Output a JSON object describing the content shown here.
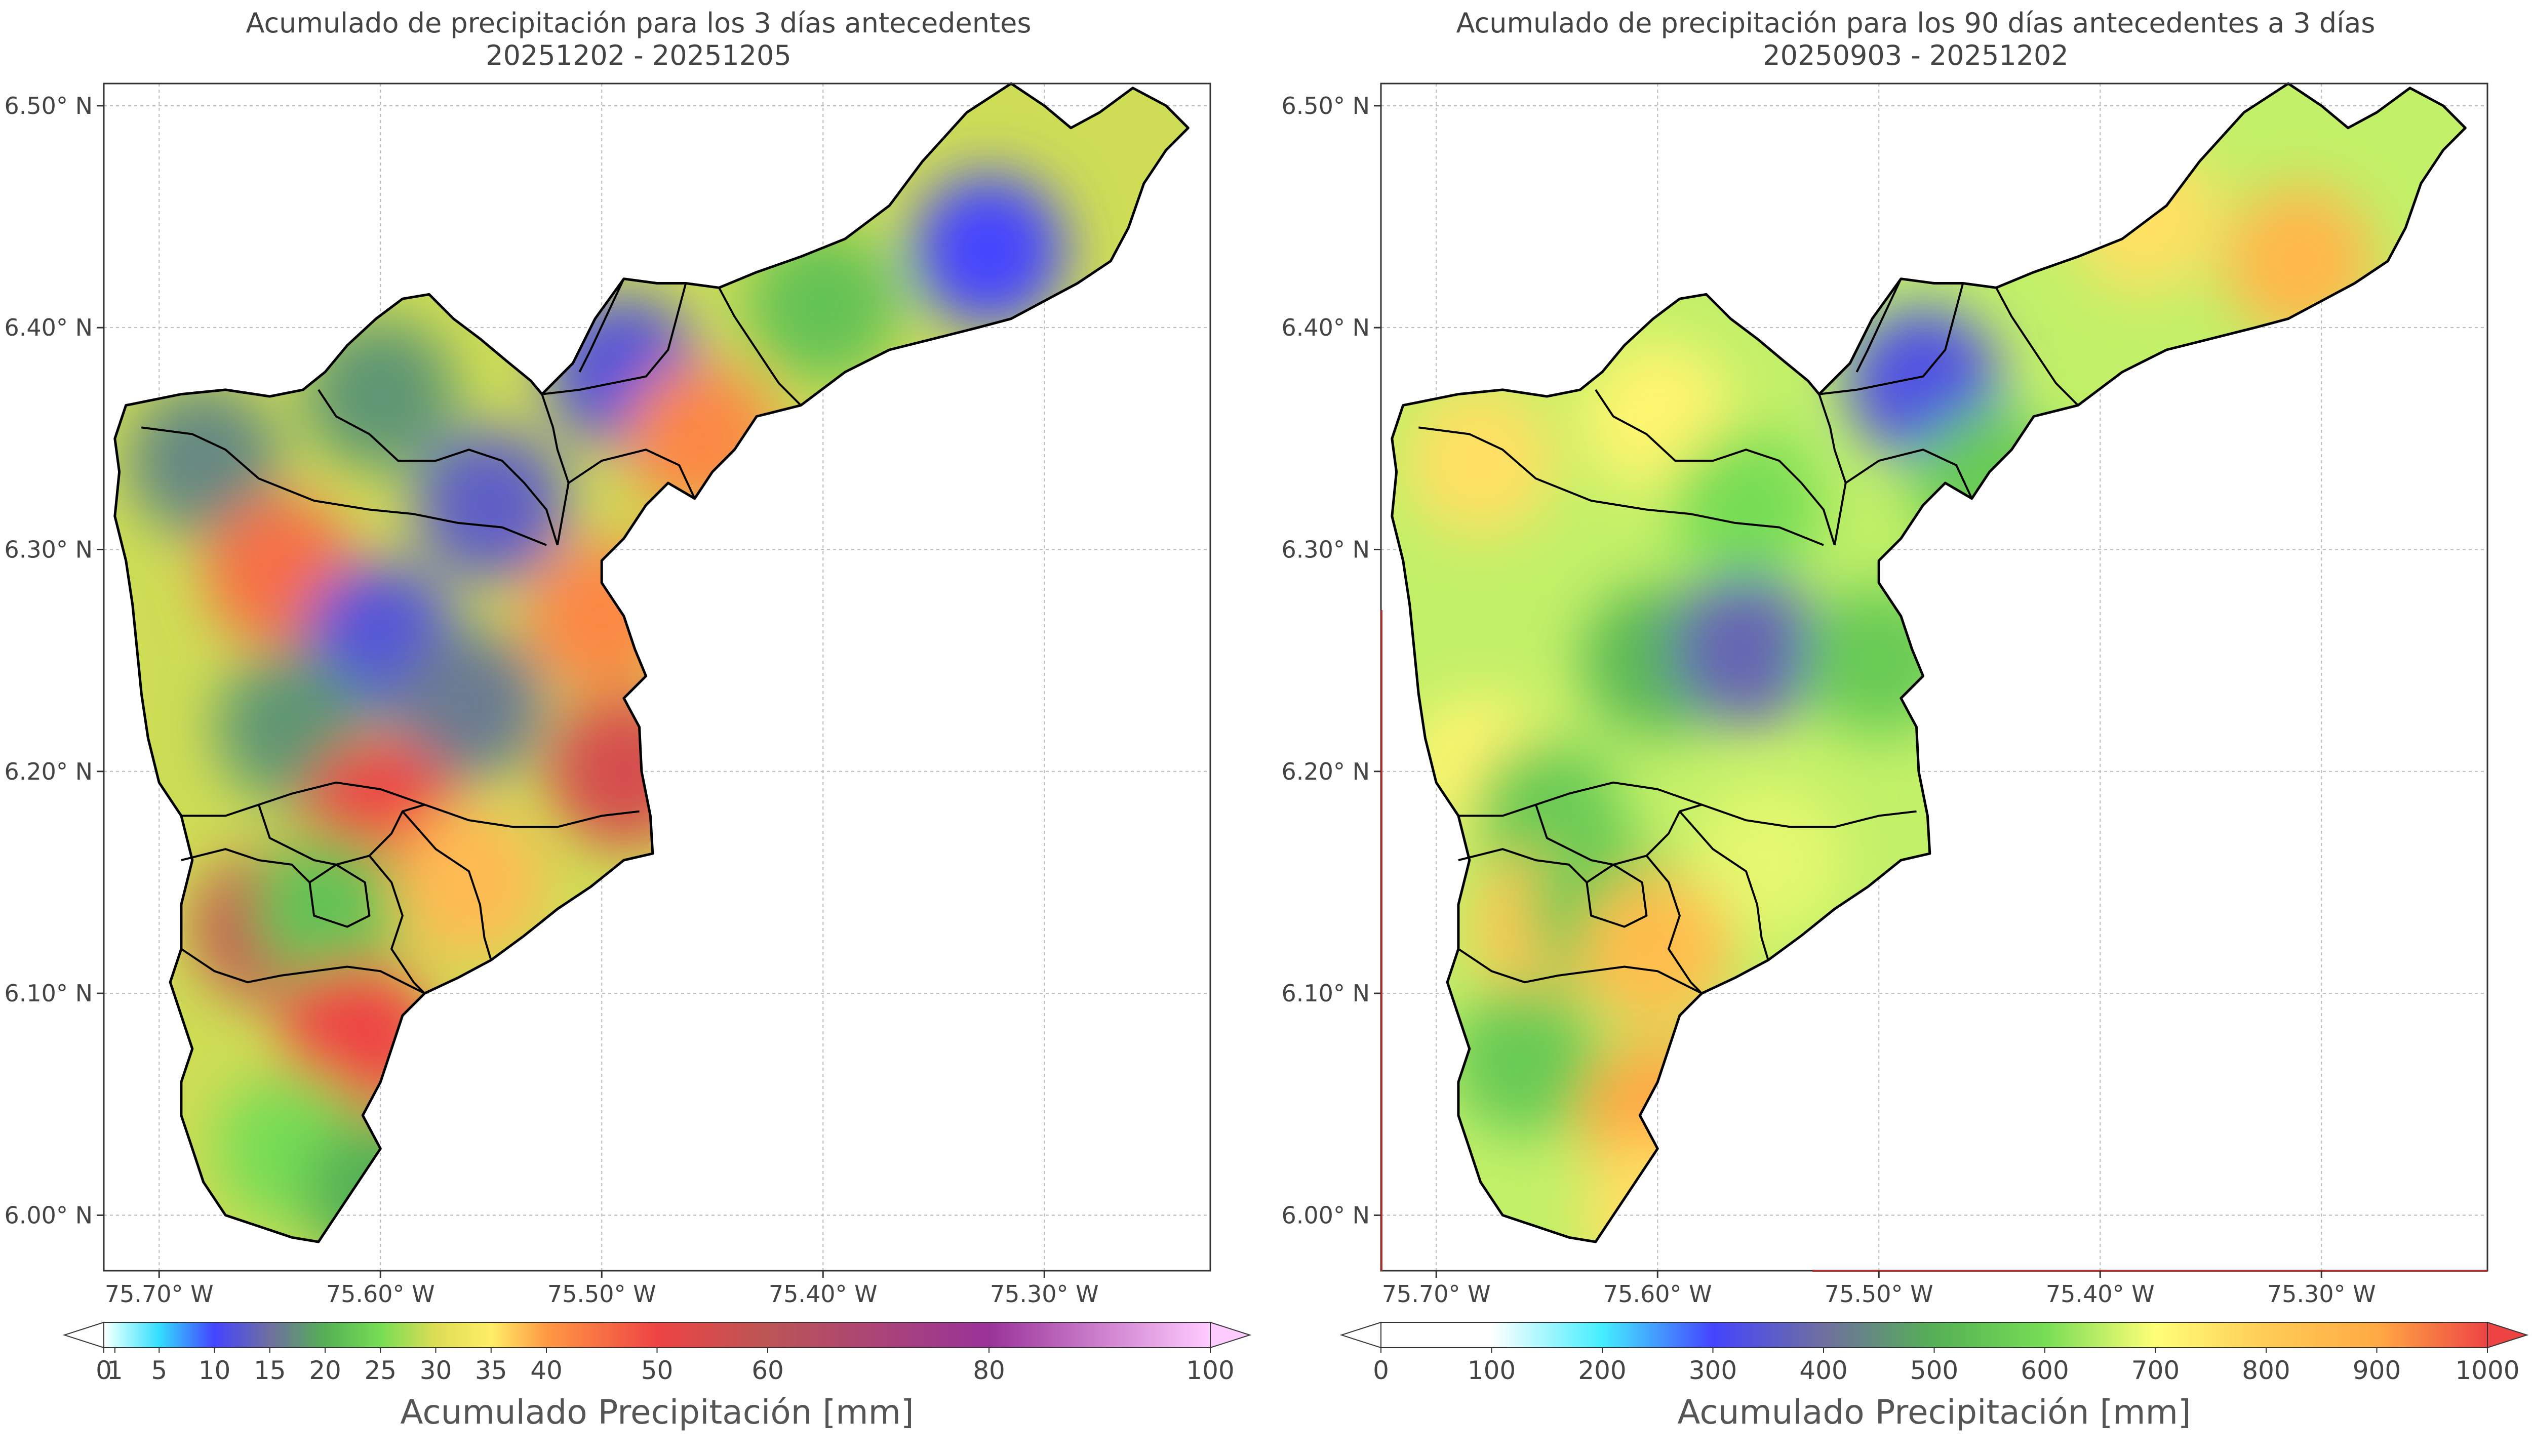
{
  "colors": {
    "frame": "#333333",
    "grid": "#bbbbbb",
    "boundary": "#000000",
    "edge_highlight": "#a33333"
  },
  "chart_data": [
    {
      "type": "heatmap",
      "title": "Acumulado de precipitación para los 3 días antecedentes",
      "subtitle": "20251202 - 20251205",
      "xlabel": "",
      "ylabel": "",
      "xlim": [
        -75.725,
        -75.225
      ],
      "ylim": [
        5.975,
        6.51
      ],
      "x_ticks": [
        -75.7,
        -75.6,
        -75.5,
        -75.4,
        -75.3
      ],
      "x_tick_labels": [
        "75.70° W",
        "75.60° W",
        "75.50° W",
        "75.40° W",
        "75.30° W"
      ],
      "y_ticks": [
        6.0,
        6.1,
        6.2,
        6.3,
        6.4,
        6.5
      ],
      "y_tick_labels": [
        "6.00° N",
        "6.10° N",
        "6.20° N",
        "6.30° N",
        "6.40° N",
        "6.50° N"
      ],
      "grid": true,
      "colorbar": {
        "label": "Acumulado Precipitación [mm]",
        "orientation": "horizontal",
        "extend": "both",
        "ticks": [
          0,
          1,
          5,
          10,
          15,
          20,
          25,
          30,
          35,
          40,
          50,
          60,
          80,
          100
        ],
        "tick_labels": [
          "0",
          "1",
          "5",
          "10",
          "15",
          "20",
          "25",
          "30",
          "35",
          "40",
          "50",
          "60",
          "80",
          "100"
        ],
        "stops": [
          {
            "v": 0,
            "c": "#ffffff"
          },
          {
            "v": 1,
            "c": "#ccffff"
          },
          {
            "v": 5,
            "c": "#33ddff"
          },
          {
            "v": 10,
            "c": "#4444ff"
          },
          {
            "v": 15,
            "c": "#6f6fa0"
          },
          {
            "v": 20,
            "c": "#55b055"
          },
          {
            "v": 25,
            "c": "#77dd55"
          },
          {
            "v": 30,
            "c": "#dddd55"
          },
          {
            "v": 35,
            "c": "#ffee66"
          },
          {
            "v": 40,
            "c": "#ff9944"
          },
          {
            "v": 50,
            "c": "#ee4444"
          },
          {
            "v": 60,
            "c": "#bb5555"
          },
          {
            "v": 80,
            "c": "#993399"
          },
          {
            "v": 100,
            "c": "#ffccff"
          }
        ]
      },
      "features": [
        {
          "x": -75.68,
          "y": 6.34,
          "value": 17
        },
        {
          "x": -75.6,
          "y": 6.37,
          "value": 18
        },
        {
          "x": -75.55,
          "y": 6.32,
          "value": 13
        },
        {
          "x": -75.645,
          "y": 6.29,
          "value": 45
        },
        {
          "x": -75.6,
          "y": 6.26,
          "value": 12
        },
        {
          "x": -75.56,
          "y": 6.23,
          "value": 16
        },
        {
          "x": -75.64,
          "y": 6.22,
          "value": 18
        },
        {
          "x": -75.5,
          "y": 6.27,
          "value": 42
        },
        {
          "x": -75.49,
          "y": 6.2,
          "value": 55
        },
        {
          "x": -75.49,
          "y": 6.38,
          "value": 12
        },
        {
          "x": -75.455,
          "y": 6.35,
          "value": 42
        },
        {
          "x": -75.325,
          "y": 6.435,
          "value": 10
        },
        {
          "x": -75.4,
          "y": 6.41,
          "value": 22
        },
        {
          "x": -75.6,
          "y": 6.18,
          "value": 50
        },
        {
          "x": -75.65,
          "y": 6.13,
          "value": 58
        },
        {
          "x": -75.624,
          "y": 6.138,
          "value": 22
        },
        {
          "x": -75.56,
          "y": 6.15,
          "value": 38
        },
        {
          "x": -75.61,
          "y": 6.08,
          "value": 50
        },
        {
          "x": -75.64,
          "y": 6.03,
          "value": 25
        },
        {
          "x": -75.6,
          "y": 6.01,
          "value": 20
        }
      ]
    },
    {
      "type": "heatmap",
      "title": "Acumulado de precipitación para los 90 días antecedentes a 3 días",
      "subtitle": "20250903 - 20251202",
      "xlabel": "",
      "ylabel": "",
      "xlim": [
        -75.725,
        -75.225
      ],
      "ylim": [
        5.975,
        6.51
      ],
      "x_ticks": [
        -75.7,
        -75.6,
        -75.5,
        -75.4,
        -75.3
      ],
      "x_tick_labels": [
        "75.70° W",
        "75.60° W",
        "75.50° W",
        "75.40° W",
        "75.30° W"
      ],
      "y_ticks": [
        6.0,
        6.1,
        6.2,
        6.3,
        6.4,
        6.5
      ],
      "y_tick_labels": [
        "6.00° N",
        "6.10° N",
        "6.20° N",
        "6.30° N",
        "6.40° N",
        "6.50° N"
      ],
      "grid": true,
      "colorbar": {
        "label": "Acumulado Precipitación [mm]",
        "orientation": "horizontal",
        "extend": "both",
        "ticks": [
          0,
          100,
          200,
          300,
          400,
          500,
          600,
          700,
          800,
          900,
          1000
        ],
        "tick_labels": [
          "0",
          "100",
          "200",
          "300",
          "400",
          "500",
          "600",
          "700",
          "800",
          "900",
          "1000"
        ],
        "stops": [
          {
            "v": 0,
            "c": "#ffffff"
          },
          {
            "v": 100,
            "c": "#ffffff"
          },
          {
            "v": 200,
            "c": "#44eeff"
          },
          {
            "v": 300,
            "c": "#4444ff"
          },
          {
            "v": 400,
            "c": "#6f6fa0"
          },
          {
            "v": 500,
            "c": "#55b055"
          },
          {
            "v": 600,
            "c": "#77dd55"
          },
          {
            "v": 700,
            "c": "#ffff77"
          },
          {
            "v": 800,
            "c": "#ffcc55"
          },
          {
            "v": 900,
            "c": "#ffaa44"
          },
          {
            "v": 1000,
            "c": "#ee4444"
          }
        ]
      },
      "features": [
        {
          "x": -75.68,
          "y": 6.34,
          "value": 760
        },
        {
          "x": -75.6,
          "y": 6.36,
          "value": 720
        },
        {
          "x": -75.56,
          "y": 6.32,
          "value": 600
        },
        {
          "x": -75.48,
          "y": 6.375,
          "value": 330
        },
        {
          "x": -75.45,
          "y": 6.33,
          "value": 560
        },
        {
          "x": -75.31,
          "y": 6.43,
          "value": 860
        },
        {
          "x": -75.38,
          "y": 6.45,
          "value": 760
        },
        {
          "x": -75.6,
          "y": 6.25,
          "value": 520
        },
        {
          "x": -75.56,
          "y": 6.255,
          "value": 380
        },
        {
          "x": -75.5,
          "y": 6.25,
          "value": 560
        },
        {
          "x": -75.68,
          "y": 6.2,
          "value": 720
        },
        {
          "x": -75.65,
          "y": 6.18,
          "value": 560
        },
        {
          "x": -75.55,
          "y": 6.16,
          "value": 680
        },
        {
          "x": -75.65,
          "y": 6.13,
          "value": 820
        },
        {
          "x": -75.624,
          "y": 6.138,
          "value": 560
        },
        {
          "x": -75.6,
          "y": 6.12,
          "value": 840
        },
        {
          "x": -75.66,
          "y": 6.07,
          "value": 560
        },
        {
          "x": -75.6,
          "y": 6.045,
          "value": 900
        },
        {
          "x": -75.6,
          "y": 6.0,
          "value": 760
        }
      ]
    }
  ]
}
